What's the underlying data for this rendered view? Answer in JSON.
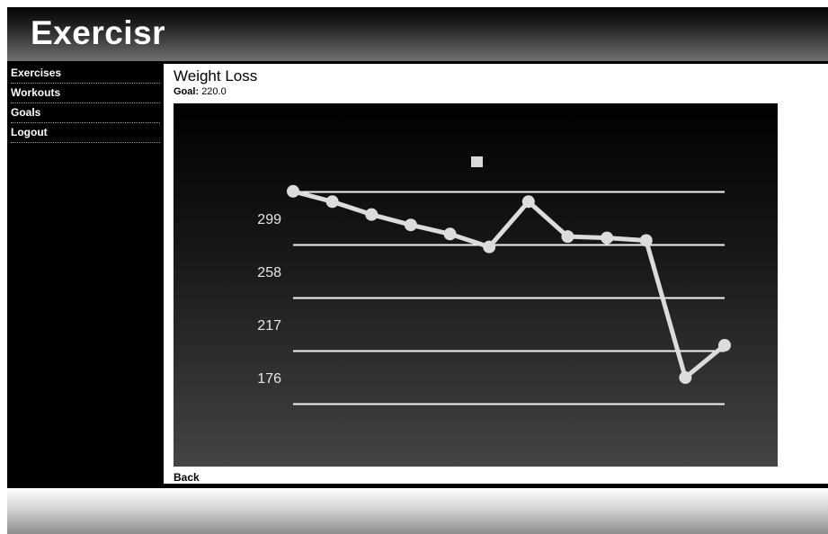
{
  "app": {
    "title": "Exercisr"
  },
  "sidebar": {
    "items": [
      {
        "label": "Exercises"
      },
      {
        "label": "Workouts"
      },
      {
        "label": "Goals"
      },
      {
        "label": "Logout"
      }
    ]
  },
  "main": {
    "title": "Weight Loss",
    "goal_label": "Goal:",
    "goal_value": "220.0",
    "back_label": "Back"
  },
  "chart_data": {
    "type": "line",
    "title": "",
    "xlabel": "",
    "ylabel": "",
    "ylim": [
      135,
      340
    ],
    "y_ticks": [
      299,
      258,
      217,
      176
    ],
    "grid": true,
    "legend": "top-center",
    "series": [
      {
        "values": [
          320,
          312,
          302,
          294,
          287,
          277,
          312,
          285,
          284,
          282,
          176,
          201
        ]
      }
    ],
    "colors": {
      "line": "#dcdcdc",
      "grid": "#f2f2f2",
      "background": "#000000"
    }
  }
}
